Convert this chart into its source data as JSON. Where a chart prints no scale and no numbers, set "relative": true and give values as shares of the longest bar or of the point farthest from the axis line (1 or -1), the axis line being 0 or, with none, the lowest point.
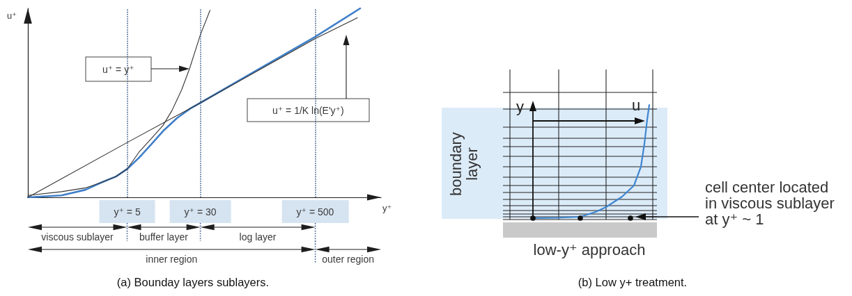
{
  "chart_data": [
    {
      "type": "line",
      "title": "(a) Bounday layers sublayers.",
      "xlabel": "y⁺",
      "ylabel": "u⁺",
      "relative": true,
      "log": "x",
      "xlim": [
        0.44,
        2500
      ],
      "xticks": [
        {
          "value": 5,
          "label": "y⁺ = 5"
        },
        {
          "value": 30,
          "label": "y⁺ = 30"
        },
        {
          "value": 500,
          "label": "y⁺ = 500"
        }
      ],
      "series": [
        {
          "color": "#3f7fc8",
          "x": [
            0.44,
            1,
            1.8,
            2.7,
            3.8,
            5,
            6.7,
            9,
            12,
            17,
            23.5,
            30,
            100,
            500,
            1500
          ],
          "values": [
            0,
            0.01,
            0.04,
            0.08,
            0.11,
            0.15,
            0.21,
            0.28,
            0.35,
            0.42,
            0.47,
            0.5,
            0.65,
            0.85,
            1
          ]
        },
        {
          "color": "#333333",
          "x": [
            0.44,
            1,
            1.8,
            2.7,
            3.8,
            5,
            6.7,
            9,
            12,
            15,
            19,
            23,
            30,
            38
          ],
          "values": [
            0.01,
            0.03,
            0.05,
            0.08,
            0.11,
            0.15,
            0.24,
            0.31,
            0.38,
            0.46,
            0.57,
            0.68,
            0.86,
            0.99
          ]
        },
        {
          "color": "#333333",
          "x": [
            0.44,
            5,
            30,
            500,
            1400
          ],
          "values": [
            0,
            0.29,
            0.5,
            0.84,
            0.95
          ]
        }
      ],
      "ref_lines": [
        {
          "axis": "x",
          "value": 5,
          "color": "#3f5f8a",
          "line_style": "dotted"
        },
        {
          "axis": "x",
          "value": 30,
          "color": "#3f5f8a",
          "line_style": "dotted"
        },
        {
          "axis": "x",
          "value": 500,
          "color": "#3f5f8a",
          "line_style": "dotted"
        }
      ],
      "annotations": [
        "u⁺ = y⁺",
        "u⁺ = 1/K ln(E'y⁺)",
        "viscous sublayer",
        "buffer layer",
        "log layer",
        "inner region",
        "outer region"
      ],
      "marker": "none"
    },
    {
      "type": "other",
      "title": "(b) Low y+ treatment.",
      "xlabel": "u",
      "ylabel": "y",
      "annotations": [
        "boundary layer",
        "cell center located in viscous sublayer at y⁺ ~ 1",
        "low-y⁺ approach"
      ]
    }
  ]
}
